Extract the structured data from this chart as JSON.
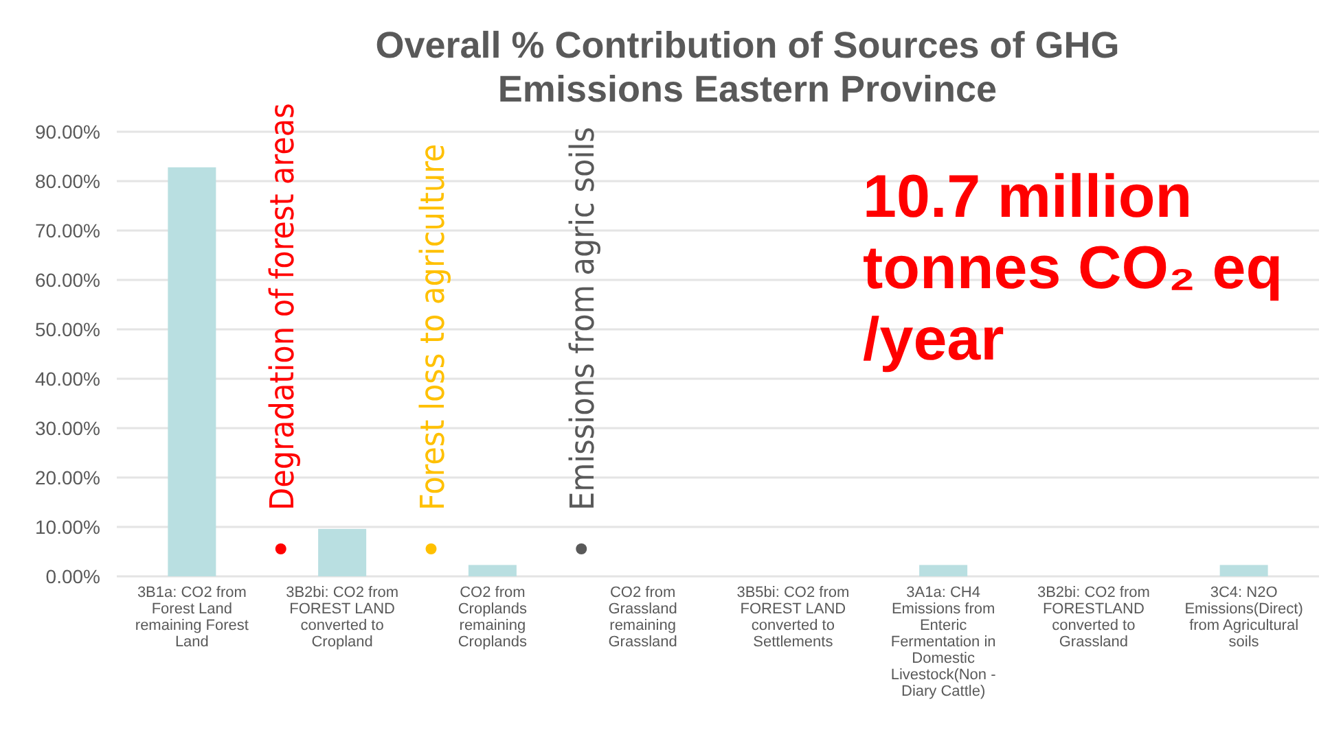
{
  "chart_data": {
    "type": "bar",
    "title": "Overall % Contribution of Sources of GHG Emissions Eastern Province",
    "categories": [
      "3B1a: CO2 from Forest Land remaining Forest Land",
      "3B2bi: CO2 from FOREST LAND converted to Cropland",
      "CO2 from Croplands remaining Croplands",
      "CO2 from Grassland remaining Grassland",
      "3B5bi: CO2 from FOREST LAND converted to Settlements",
      "3A1a: CH4 Emissions from Enteric Fermentation in Domestic Livestock(Non - Diary Cattle)",
      "3B2bi: CO2 from FORESTLAND converted to Grassland",
      "3C4: N2O Emissions(Direct) from Agricultural soils"
    ],
    "values": [
      82.8,
      9.6,
      2.3,
      null,
      null,
      2.3,
      null,
      2.3
    ],
    "color": "#b9dfe1",
    "ylim": [
      0,
      90
    ],
    "yticks": [
      {
        "value": 0,
        "label": "0.00%"
      },
      {
        "value": 10,
        "label": "10.00%"
      },
      {
        "value": 20,
        "label": "20.00%"
      },
      {
        "value": 30,
        "label": "30.00%"
      },
      {
        "value": 40,
        "label": "40.00%"
      },
      {
        "value": 50,
        "label": "50.00%"
      },
      {
        "value": 60,
        "label": "60.00%"
      },
      {
        "value": 70,
        "label": "70.00%"
      },
      {
        "value": 80,
        "label": "80.00%"
      },
      {
        "value": 90,
        "label": "90.00%"
      }
    ],
    "grid": "y",
    "annotations": [
      "Degradation of forest areas",
      "Forest loss to agriculture",
      "Emissions from agric soils",
      "10.7 million tonnes CO₂ eq /year"
    ]
  }
}
